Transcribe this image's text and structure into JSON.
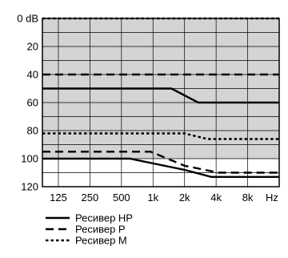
{
  "chart_data": {
    "type": "line",
    "title": "",
    "xlabel": "",
    "ylabel": "",
    "x_scale": "log",
    "y_inverted": true,
    "x_tick_labels": [
      {
        "f": 125,
        "label": "125"
      },
      {
        "f": 250,
        "label": "250"
      },
      {
        "f": 500,
        "label": "500"
      },
      {
        "f": 1000,
        "label": "1k"
      },
      {
        "f": 2000,
        "label": "2k"
      },
      {
        "f": 4000,
        "label": "4k"
      },
      {
        "f": 8000,
        "label": "8k"
      }
    ],
    "x_unit_label": "Hz",
    "y_ticks": [
      {
        "v": 0,
        "label": "0 dB"
      },
      {
        "v": 20,
        "label": "20"
      },
      {
        "v": 40,
        "label": "40"
      },
      {
        "v": 60,
        "label": "60"
      },
      {
        "v": 80,
        "label": "80"
      },
      {
        "v": 100,
        "label": "100"
      },
      {
        "v": 120,
        "label": "120"
      }
    ],
    "ylim": [
      0,
      120
    ],
    "grid": true,
    "shaded_region": {
      "upper_db": 0,
      "lower_db": 100,
      "color": "#d4d4d4"
    },
    "legend_position": "bottom-left",
    "series": [
      {
        "name": "Ресивер HP",
        "dash": "solid",
        "points": [
          [
            88,
            50
          ],
          [
            1500,
            50
          ],
          [
            2700,
            60
          ],
          [
            16000,
            60
          ]
        ]
      },
      {
        "name": "Ресивер HP",
        "dash": "solid",
        "points": [
          [
            88,
            100
          ],
          [
            600,
            100
          ],
          [
            2000,
            108
          ],
          [
            3600,
            113
          ],
          [
            16000,
            113
          ]
        ]
      },
      {
        "name": "Ресивер P",
        "dash": "long-dash",
        "points": [
          [
            88,
            40
          ],
          [
            16000,
            40
          ]
        ]
      },
      {
        "name": "Ресивер P",
        "dash": "long-dash",
        "points": [
          [
            88,
            95
          ],
          [
            950,
            95
          ],
          [
            2000,
            105
          ],
          [
            4200,
            110
          ],
          [
            16000,
            110
          ]
        ]
      },
      {
        "name": "Ресивер M",
        "dash": "short-dash",
        "points": [
          [
            88,
            0
          ],
          [
            16000,
            0
          ]
        ]
      },
      {
        "name": "Ресивер M",
        "dash": "short-dash",
        "points": [
          [
            88,
            82
          ],
          [
            2000,
            82
          ],
          [
            3300,
            86
          ],
          [
            16000,
            86
          ]
        ]
      }
    ],
    "legend": [
      {
        "label": "Ресивер HP",
        "dash": "solid"
      },
      {
        "label": "Ресивер P",
        "dash": "long-dash"
      },
      {
        "label": "Ресивер M",
        "dash": "short-dash"
      }
    ]
  }
}
